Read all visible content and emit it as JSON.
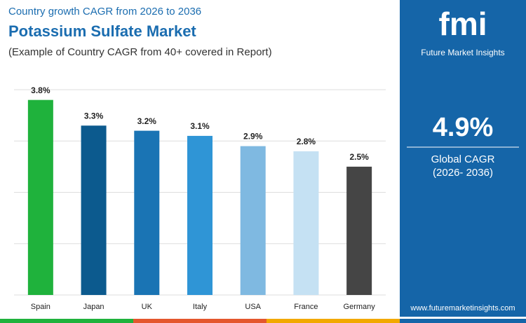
{
  "chart_data": {
    "type": "bar",
    "kicker": "Country growth CAGR from 2026 to 2036",
    "title": "Potassium Sulfate Market",
    "subtitle": "(Example of Country CAGR from 40+ covered in Report)",
    "categories": [
      "Spain",
      "Japan",
      "UK",
      "Italy",
      "USA",
      "France",
      "Germany"
    ],
    "values": [
      3.8,
      3.3,
      3.2,
      3.1,
      2.9,
      2.8,
      2.5
    ],
    "value_labels": [
      "3.8%",
      "3.3%",
      "3.2%",
      "3.1%",
      "2.9%",
      "2.8%",
      "2.5%"
    ],
    "colors": [
      "#1fb23c",
      "#0c5a8e",
      "#1a74b4",
      "#2f95d6",
      "#7fb9e1",
      "#c5e1f3",
      "#454545"
    ],
    "ylim": [
      0,
      4
    ],
    "yticks": [
      0,
      1,
      2,
      3,
      4
    ],
    "grid": true
  },
  "panel": {
    "logo": "fmi",
    "brand": "Future Market Insights",
    "value": "4.9%",
    "label": "Global CAGR",
    "period": "(2026- 2036)",
    "url": "www.futuremarketinsights.com"
  }
}
